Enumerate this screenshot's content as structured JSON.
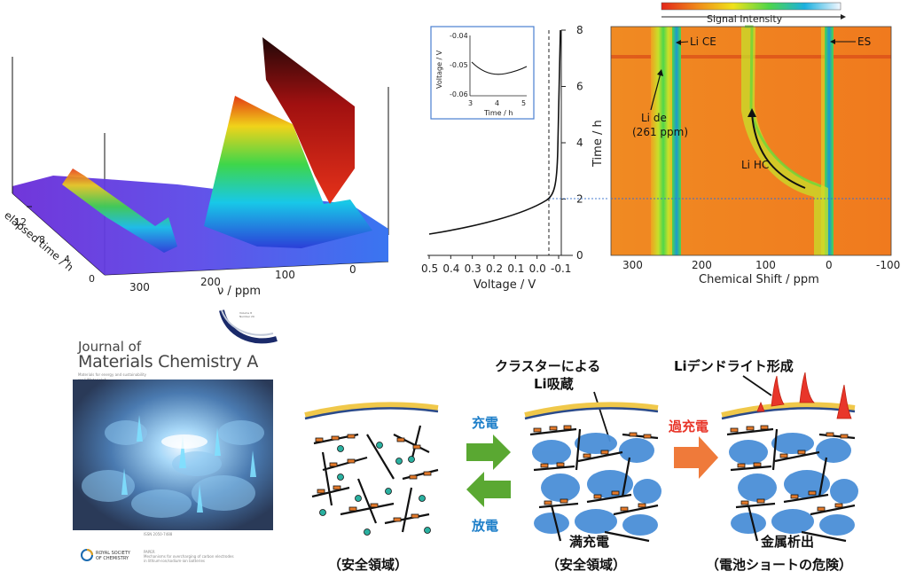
{
  "waterfall": {
    "y_axis_label": "elapsed time / h",
    "y_ticks": [
      "12",
      "8",
      "4",
      "0"
    ],
    "x_axis_label": "ν / ppm",
    "x_ticks": [
      "300",
      "200",
      "100",
      "0"
    ]
  },
  "voltage_plot": {
    "x_axis_label": "Voltage / V",
    "x_ticks": [
      "0.5",
      "0.4",
      "0.3",
      "0.2",
      "0.1",
      "0.0",
      "-0.1"
    ],
    "y_axis_label": "Time / h",
    "y_ticks": [
      "0",
      "2",
      "4",
      "6",
      "8"
    ],
    "inset": {
      "y_axis_label": "Voltage / V",
      "y_ticks": [
        "-0.04",
        "-0.05",
        "-0.06"
      ],
      "x_axis_label": "Time / h",
      "x_ticks": [
        "3",
        "4",
        "5"
      ]
    }
  },
  "heatmap": {
    "colorbar_label": "Signal Intensity",
    "x_axis_label": "Chemical Shift / ppm",
    "x_ticks": [
      "300",
      "200",
      "100",
      "0",
      "-100"
    ],
    "annotations": {
      "li_ce": "Li CE",
      "es": "ES",
      "li_de": "Li de",
      "li_de_ppm": "(261 ppm)",
      "li_hc": "Li HC"
    }
  },
  "cover": {
    "journal_line1": "Journal of",
    "journal_line2": "Materials Chemistry A",
    "publisher_line1": "ROYAL SOCIETY",
    "publisher_line2": "OF CHEMISTRY"
  },
  "scheme": {
    "charge_label": "充電",
    "discharge_label": "放電",
    "overcharge_label": "過充電",
    "cluster_storage_line1": "クラスターによる",
    "cluster_storage_line2": "Li吸蔵",
    "dendrite_label": "Liデンドライト形成",
    "state1_caption": "（安全領域）",
    "state2_caption_line1": "満充電",
    "state2_caption_line2": "（安全領域）",
    "state3_caption_line1": "金属析出",
    "state3_caption_line2": "（電池ショートの危険）"
  },
  "colors": {
    "charge_blue": "#1e7fc9",
    "overcharge_red": "#e8362a",
    "arrow_green": "#5aa832",
    "arrow_orange": "#ef7a3a",
    "cluster_blue": "#4a8fd8"
  }
}
